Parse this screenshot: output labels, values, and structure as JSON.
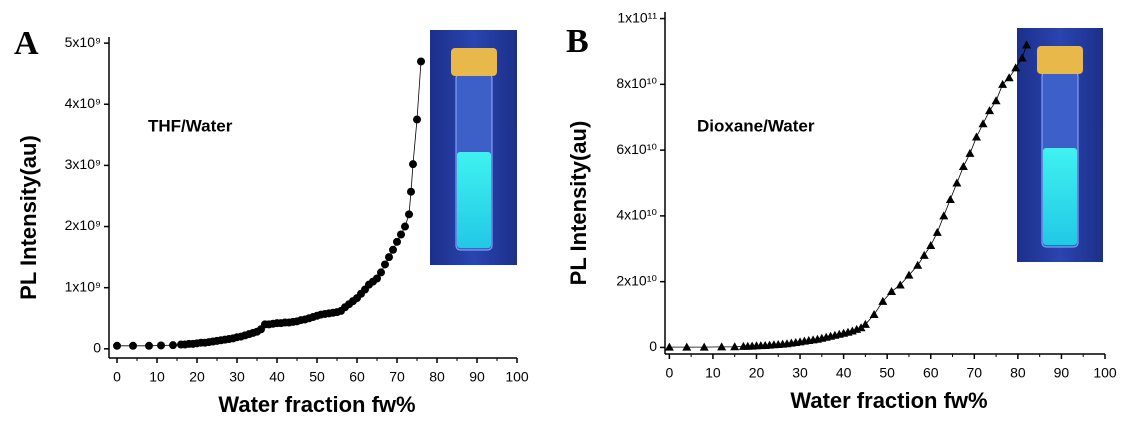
{
  "chart_data": [
    {
      "type": "scatter-line",
      "panel": "A",
      "annotation": "THF/Water",
      "x_label": "Water fraction fw%",
      "y_label": "PL Intensity(au)",
      "marker": "circle",
      "color": "#000000",
      "x": [
        0,
        4,
        8,
        11,
        14,
        16,
        17,
        18,
        19,
        20,
        21,
        22,
        23,
        24,
        25,
        26,
        27,
        28,
        29,
        30,
        31,
        32,
        33,
        34,
        35,
        36,
        37,
        38,
        39,
        40,
        41,
        42,
        43,
        44,
        45,
        46,
        47,
        48,
        49,
        50,
        51,
        52,
        53,
        54,
        55,
        56,
        57,
        58,
        59,
        60,
        61,
        62,
        63,
        64,
        65,
        66,
        67,
        68,
        69,
        70,
        71,
        72,
        73,
        73.5,
        74,
        75,
        76
      ],
      "values": [
        50000000.0,
        50000000.0,
        50000000.0,
        55000000.0,
        60000000.0,
        70000000.0,
        70000000.0,
        80000000.0,
        80000000.0,
        90000000.0,
        100000000.0,
        100000000.0,
        110000000.0,
        120000000.0,
        130000000.0,
        140000000.0,
        150000000.0,
        160000000.0,
        170000000.0,
        190000000.0,
        200000000.0,
        220000000.0,
        240000000.0,
        260000000.0,
        280000000.0,
        320000000.0,
        400000000.0,
        400000000.0,
        410000000.0,
        420000000.0,
        420000000.0,
        430000000.0,
        430000000.0,
        440000000.0,
        450000000.0,
        470000000.0,
        480000000.0,
        500000000.0,
        520000000.0,
        540000000.0,
        560000000.0,
        570000000.0,
        580000000.0,
        590000000.0,
        600000000.0,
        620000000.0,
        680000000.0,
        730000000.0,
        780000000.0,
        830000000.0,
        900000000.0,
        970000000.0,
        1050000000.0,
        1100000000.0,
        1150000000.0,
        1250000000.0,
        1380000000.0,
        1500000000.0,
        1620000000.0,
        1750000000.0,
        1870000000.0,
        2000000000.0,
        2200000000.0,
        2570000000.0,
        3020000000.0,
        3750000000.0,
        4700000000.0
      ],
      "xlim": [
        -2,
        100
      ],
      "xticks": [
        0,
        10,
        20,
        30,
        40,
        50,
        60,
        70,
        80,
        90,
        100
      ],
      "ylim": [
        -150000000.0,
        5100000000.0
      ],
      "yticks": [
        0,
        {
          "value": 1000000000.0,
          "label": "1x10⁹"
        },
        {
          "value": 2000000000.0,
          "label": "2x10⁹"
        },
        {
          "value": 3000000000.0,
          "label": "3x10⁹"
        },
        {
          "value": 4000000000.0,
          "label": "4x10⁹"
        },
        {
          "value": 5000000000.0,
          "label": "5x10⁹"
        }
      ]
    },
    {
      "type": "scatter-line",
      "panel": "B",
      "annotation": "Dioxane/Water",
      "x_label": "Water fraction fw%",
      "y_label": "PL Intensity(au)",
      "marker": "triangle",
      "color": "#000000",
      "x": [
        0,
        4,
        8,
        12,
        15,
        17,
        18,
        19,
        20,
        21,
        22,
        23,
        24,
        25,
        26,
        27,
        28,
        29,
        30,
        31,
        32,
        33,
        34,
        35,
        36,
        37,
        38,
        39,
        40,
        41,
        42,
        43,
        44,
        45,
        47,
        49,
        51,
        53,
        55,
        57,
        58.5,
        60,
        61.5,
        63,
        64.5,
        66,
        67.5,
        69,
        70.5,
        72,
        73.5,
        75,
        76.5,
        78,
        79.5,
        81,
        82
      ],
      "values": [
        100000000.0,
        100000000.0,
        100000000.0,
        150000000.0,
        200000000.0,
        300000000.0,
        350000000.0,
        400000000.0,
        500000000.0,
        550000000.0,
        600000000.0,
        700000000.0,
        800000000.0,
        900000000.0,
        1000000000.0,
        1100000000.0,
        1300000000.0,
        1500000000.0,
        1700000000.0,
        1900000000.0,
        2100000000.0,
        2300000000.0,
        2500000000.0,
        2800000000.0,
        3100000000.0,
        3400000000.0,
        3700000000.0,
        4000000000.0,
        4300000000.0,
        4600000000.0,
        5000000000.0,
        5500000000.0,
        6000000000.0,
        7000000000.0,
        10000000000.0,
        14000000000.0,
        17000000000.0,
        19000000000.0,
        22000000000.0,
        25000000000.0,
        28000000000.0,
        31000000000.0,
        35000000000.0,
        40000000000.0,
        45000000000.0,
        50000000000.0,
        55000000000.0,
        59000000000.0,
        64000000000.0,
        68000000000.0,
        72000000000.0,
        75000000000.0,
        80000000000.0,
        82000000000.0,
        85000000000.0,
        88000000000.0,
        92000000000.0
      ],
      "xlim": [
        -1,
        100
      ],
      "xticks": [
        0,
        10,
        20,
        30,
        40,
        50,
        60,
        70,
        80,
        90,
        100
      ],
      "ylim": [
        -2000000000.0,
        102000000000.0
      ],
      "yticks": [
        0,
        {
          "value": 20000000000.0,
          "label": "2x10¹⁰"
        },
        {
          "value": 40000000000.0,
          "label": "4x10¹⁰"
        },
        {
          "value": 60000000000.0,
          "label": "6x10¹⁰"
        },
        {
          "value": 80000000000.0,
          "label": "8x10¹⁰"
        },
        {
          "value": 100000000000.0,
          "label": "1x10¹¹"
        }
      ]
    }
  ]
}
